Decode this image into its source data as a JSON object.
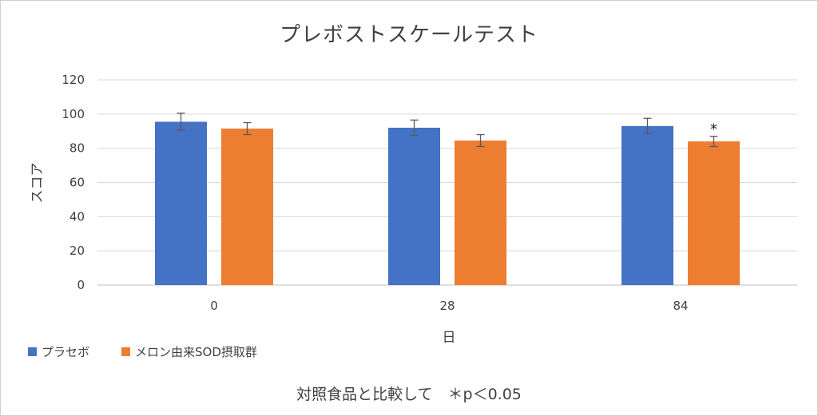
{
  "chart_data": {
    "type": "bar",
    "title": "プレボストスケールテスト",
    "xlabel": "日",
    "ylabel": "スコア",
    "categories": [
      "0",
      "28",
      "84"
    ],
    "ylim": [
      0,
      120
    ],
    "yticks": [
      0,
      20,
      40,
      60,
      80,
      100,
      120
    ],
    "grid": true,
    "legend_position": "bottom-left",
    "series": [
      {
        "name": "プラセボ",
        "color": "#4472C4",
        "values": [
          95.5,
          92,
          93
        ],
        "error": [
          5,
          4.5,
          4.5
        ]
      },
      {
        "name": "メロン由来SOD摂取群",
        "color": "#ED7D31",
        "values": [
          91.5,
          84.5,
          84
        ],
        "error": [
          3.5,
          3.5,
          3
        ]
      }
    ],
    "annotations": [
      {
        "category": "84",
        "series": "メロン由来SOD摂取群",
        "text": "*"
      }
    ],
    "footnote": "対照食品と比較して　＊p＜0.05"
  }
}
